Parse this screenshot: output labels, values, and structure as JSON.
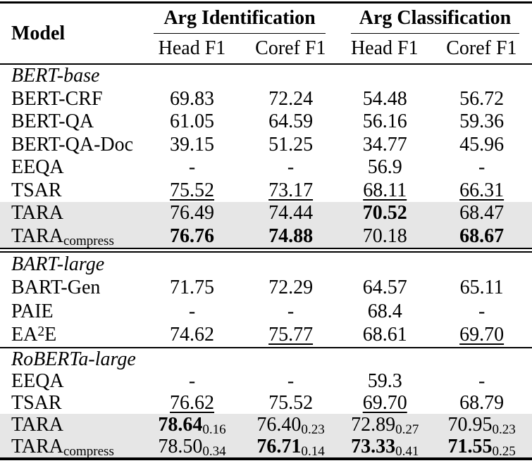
{
  "page": {
    "background": "#ffffff",
    "text_color": "#000000",
    "highlight_color": "#e6e6e6",
    "rule_color": "#000000"
  },
  "header": {
    "model_label": "Model",
    "groups": [
      {
        "label": "Arg Identification",
        "subcols": [
          "Head F1",
          "Coref F1"
        ]
      },
      {
        "label": "Arg Classification",
        "subcols": [
          "Head F1",
          "Coref F1"
        ]
      }
    ]
  },
  "chart_data": {
    "type": "table",
    "title": "",
    "columns": [
      "Model",
      "Arg Identification Head F1",
      "Arg Identification Coref F1",
      "Arg Classification Head F1",
      "Arg Classification Coref F1"
    ],
    "note": "underline = u, bold = b, sub = standard-deviation subscript, hl = gray highlighted row"
  },
  "sections": [
    {
      "id": "bert-base",
      "name": "BERT-base",
      "divider_after": "double",
      "rows": [
        {
          "model": [
            {
              "t": "BERT-CRF"
            }
          ],
          "hl": false,
          "cells": [
            {
              "v": "69.83"
            },
            {
              "v": "72.24"
            },
            {
              "v": "54.48"
            },
            {
              "v": "56.72"
            }
          ]
        },
        {
          "model": [
            {
              "t": "BERT-QA"
            }
          ],
          "hl": false,
          "cells": [
            {
              "v": "61.05"
            },
            {
              "v": "64.59"
            },
            {
              "v": "56.16"
            },
            {
              "v": "59.36"
            }
          ]
        },
        {
          "model": [
            {
              "t": "BERT-QA-Doc"
            }
          ],
          "hl": false,
          "cells": [
            {
              "v": "39.15"
            },
            {
              "v": "51.25"
            },
            {
              "v": "34.77"
            },
            {
              "v": "45.96"
            }
          ]
        },
        {
          "model": [
            {
              "t": "EEQA"
            }
          ],
          "hl": false,
          "cells": [
            {
              "v": "-"
            },
            {
              "v": "-"
            },
            {
              "v": "56.9"
            },
            {
              "v": "-"
            }
          ]
        },
        {
          "model": [
            {
              "t": "TSAR"
            }
          ],
          "hl": false,
          "cells": [
            {
              "v": "75.52",
              "u": true
            },
            {
              "v": "73.17",
              "u": true
            },
            {
              "v": "68.11",
              "u": true
            },
            {
              "v": "66.31",
              "u": true
            }
          ]
        },
        {
          "model": [
            {
              "t": "TARA"
            }
          ],
          "hl": true,
          "cells": [
            {
              "v": "76.49"
            },
            {
              "v": "74.44"
            },
            {
              "v": "70.52",
              "b": true
            },
            {
              "v": "68.47"
            }
          ]
        },
        {
          "model": [
            {
              "t": "TARA"
            },
            {
              "t": "compress",
              "s": "sub"
            }
          ],
          "hl": true,
          "cells": [
            {
              "v": "76.76",
              "b": true
            },
            {
              "v": "74.88",
              "b": true
            },
            {
              "v": "70.18"
            },
            {
              "v": "68.67",
              "b": true
            }
          ]
        }
      ]
    },
    {
      "id": "bart-large",
      "name": "BART-large",
      "divider_after": "single",
      "rows": [
        {
          "model": [
            {
              "t": "BART-Gen"
            }
          ],
          "hl": false,
          "cells": [
            {
              "v": "71.75"
            },
            {
              "v": "72.29"
            },
            {
              "v": "64.57"
            },
            {
              "v": "65.11"
            }
          ]
        },
        {
          "model": [
            {
              "t": "PAIE"
            }
          ],
          "hl": false,
          "cells": [
            {
              "v": "-"
            },
            {
              "v": "-"
            },
            {
              "v": "68.4"
            },
            {
              "v": "-"
            }
          ]
        },
        {
          "model": [
            {
              "t": "EA"
            },
            {
              "t": "2",
              "s": "sup"
            },
            {
              "t": "E"
            }
          ],
          "hl": false,
          "cells": [
            {
              "v": "74.62"
            },
            {
              "v": "75.77",
              "u": true
            },
            {
              "v": "68.61"
            },
            {
              "v": "69.70",
              "u": true
            }
          ]
        }
      ]
    },
    {
      "id": "roberta-large",
      "name": "RoBERTa-large",
      "divider_after": "none",
      "rows": [
        {
          "model": [
            {
              "t": "EEQA"
            }
          ],
          "hl": false,
          "cells": [
            {
              "v": "-"
            },
            {
              "v": "-"
            },
            {
              "v": "59.3"
            },
            {
              "v": "-"
            }
          ]
        },
        {
          "model": [
            {
              "t": "TSAR"
            }
          ],
          "hl": false,
          "cells": [
            {
              "v": "76.62",
              "u": true
            },
            {
              "v": "75.52"
            },
            {
              "v": "69.70",
              "u": true
            },
            {
              "v": "68.79"
            }
          ]
        },
        {
          "model": [
            {
              "t": "TARA"
            }
          ],
          "hl": true,
          "cells": [
            {
              "v": "78.64",
              "b": true,
              "sub": "0.16"
            },
            {
              "v": "76.40",
              "sub": "0.23"
            },
            {
              "v": "72.89",
              "sub": "0.27"
            },
            {
              "v": "70.95",
              "sub": "0.23"
            }
          ]
        },
        {
          "model": [
            {
              "t": "TARA"
            },
            {
              "t": "compress",
              "s": "sub"
            }
          ],
          "hl": true,
          "cells": [
            {
              "v": "78.50",
              "sub": "0.34"
            },
            {
              "v": "76.71",
              "b": true,
              "sub": "0.14"
            },
            {
              "v": "73.33",
              "b": true,
              "sub": "0.41"
            },
            {
              "v": "71.55",
              "b": true,
              "sub": "0.25"
            }
          ]
        }
      ]
    }
  ]
}
